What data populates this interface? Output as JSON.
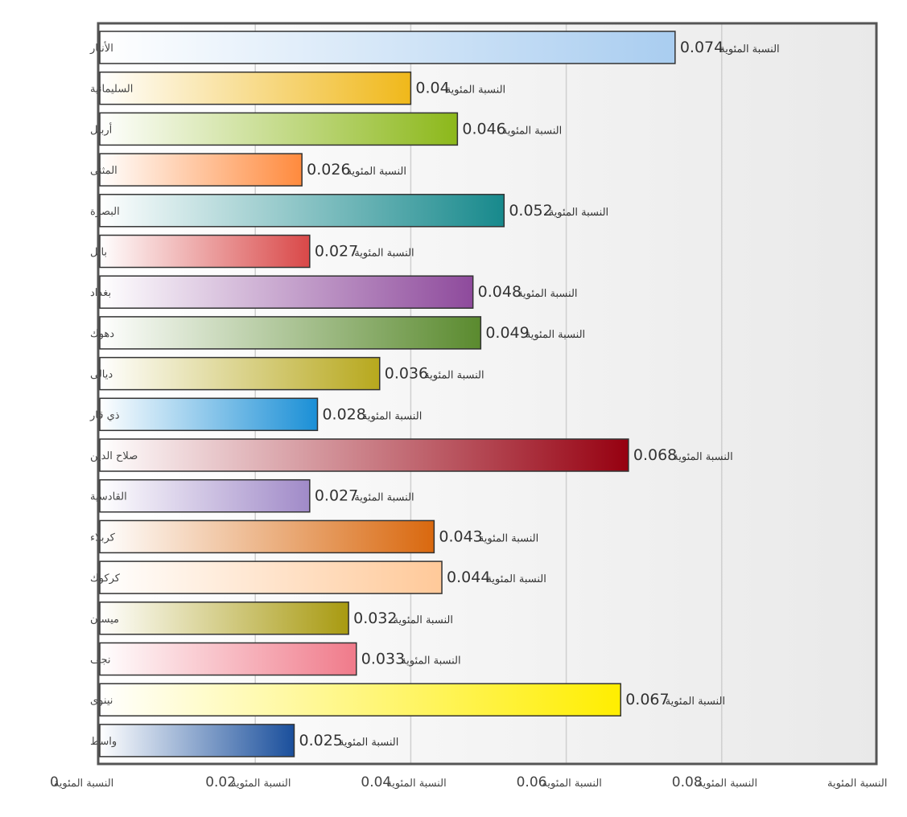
{
  "chart_data": {
    "type": "bar",
    "orientation": "horizontal",
    "categories": [
      "الأنبار",
      "السليمانية",
      "أربيل",
      "المثنى",
      "البصرة",
      "بابل",
      "بغداد",
      "دهوك",
      "ديالى",
      "ذي قار",
      "صلاح الدين",
      "القادسية",
      "كربلاء",
      "كركوك",
      "ميسان",
      "نجف",
      "نينوى",
      "واسط"
    ],
    "values": [
      0.074,
      0.04,
      0.046,
      0.026,
      0.052,
      0.027,
      0.048,
      0.049,
      0.036,
      0.028,
      0.068,
      0.027,
      0.043,
      0.044,
      0.032,
      0.033,
      0.067,
      0.025
    ],
    "value_labels": [
      "0.074",
      "0.04",
      "0.046",
      "0.026",
      "0.052",
      "0.027",
      "0.048",
      "0.049",
      "0.036",
      "0.028",
      "0.068",
      "0.027",
      "0.043",
      "0.044",
      "0.032",
      "0.033",
      "0.067",
      "0.025"
    ],
    "unit_label": "النسبة المئوية",
    "colors": [
      "#a9cdf0",
      "#f0b81a",
      "#8cb81a",
      "#ff8a3d",
      "#17898c",
      "#d94848",
      "#8e4a9c",
      "#5a8a2e",
      "#b7a81d",
      "#1a8fd6",
      "#960010",
      "#a08ac8",
      "#d9680e",
      "#ffc999",
      "#a89a10",
      "#f07a8a",
      "#ffee00",
      "#1a4f9c"
    ],
    "x_ticks": [
      "0",
      "0.02",
      "0.04",
      "0.06",
      "0.08",
      ""
    ],
    "xlim": [
      0,
      0.1
    ],
    "xlabel": "",
    "ylabel": "",
    "title": "",
    "grid": true,
    "legend": "none"
  }
}
